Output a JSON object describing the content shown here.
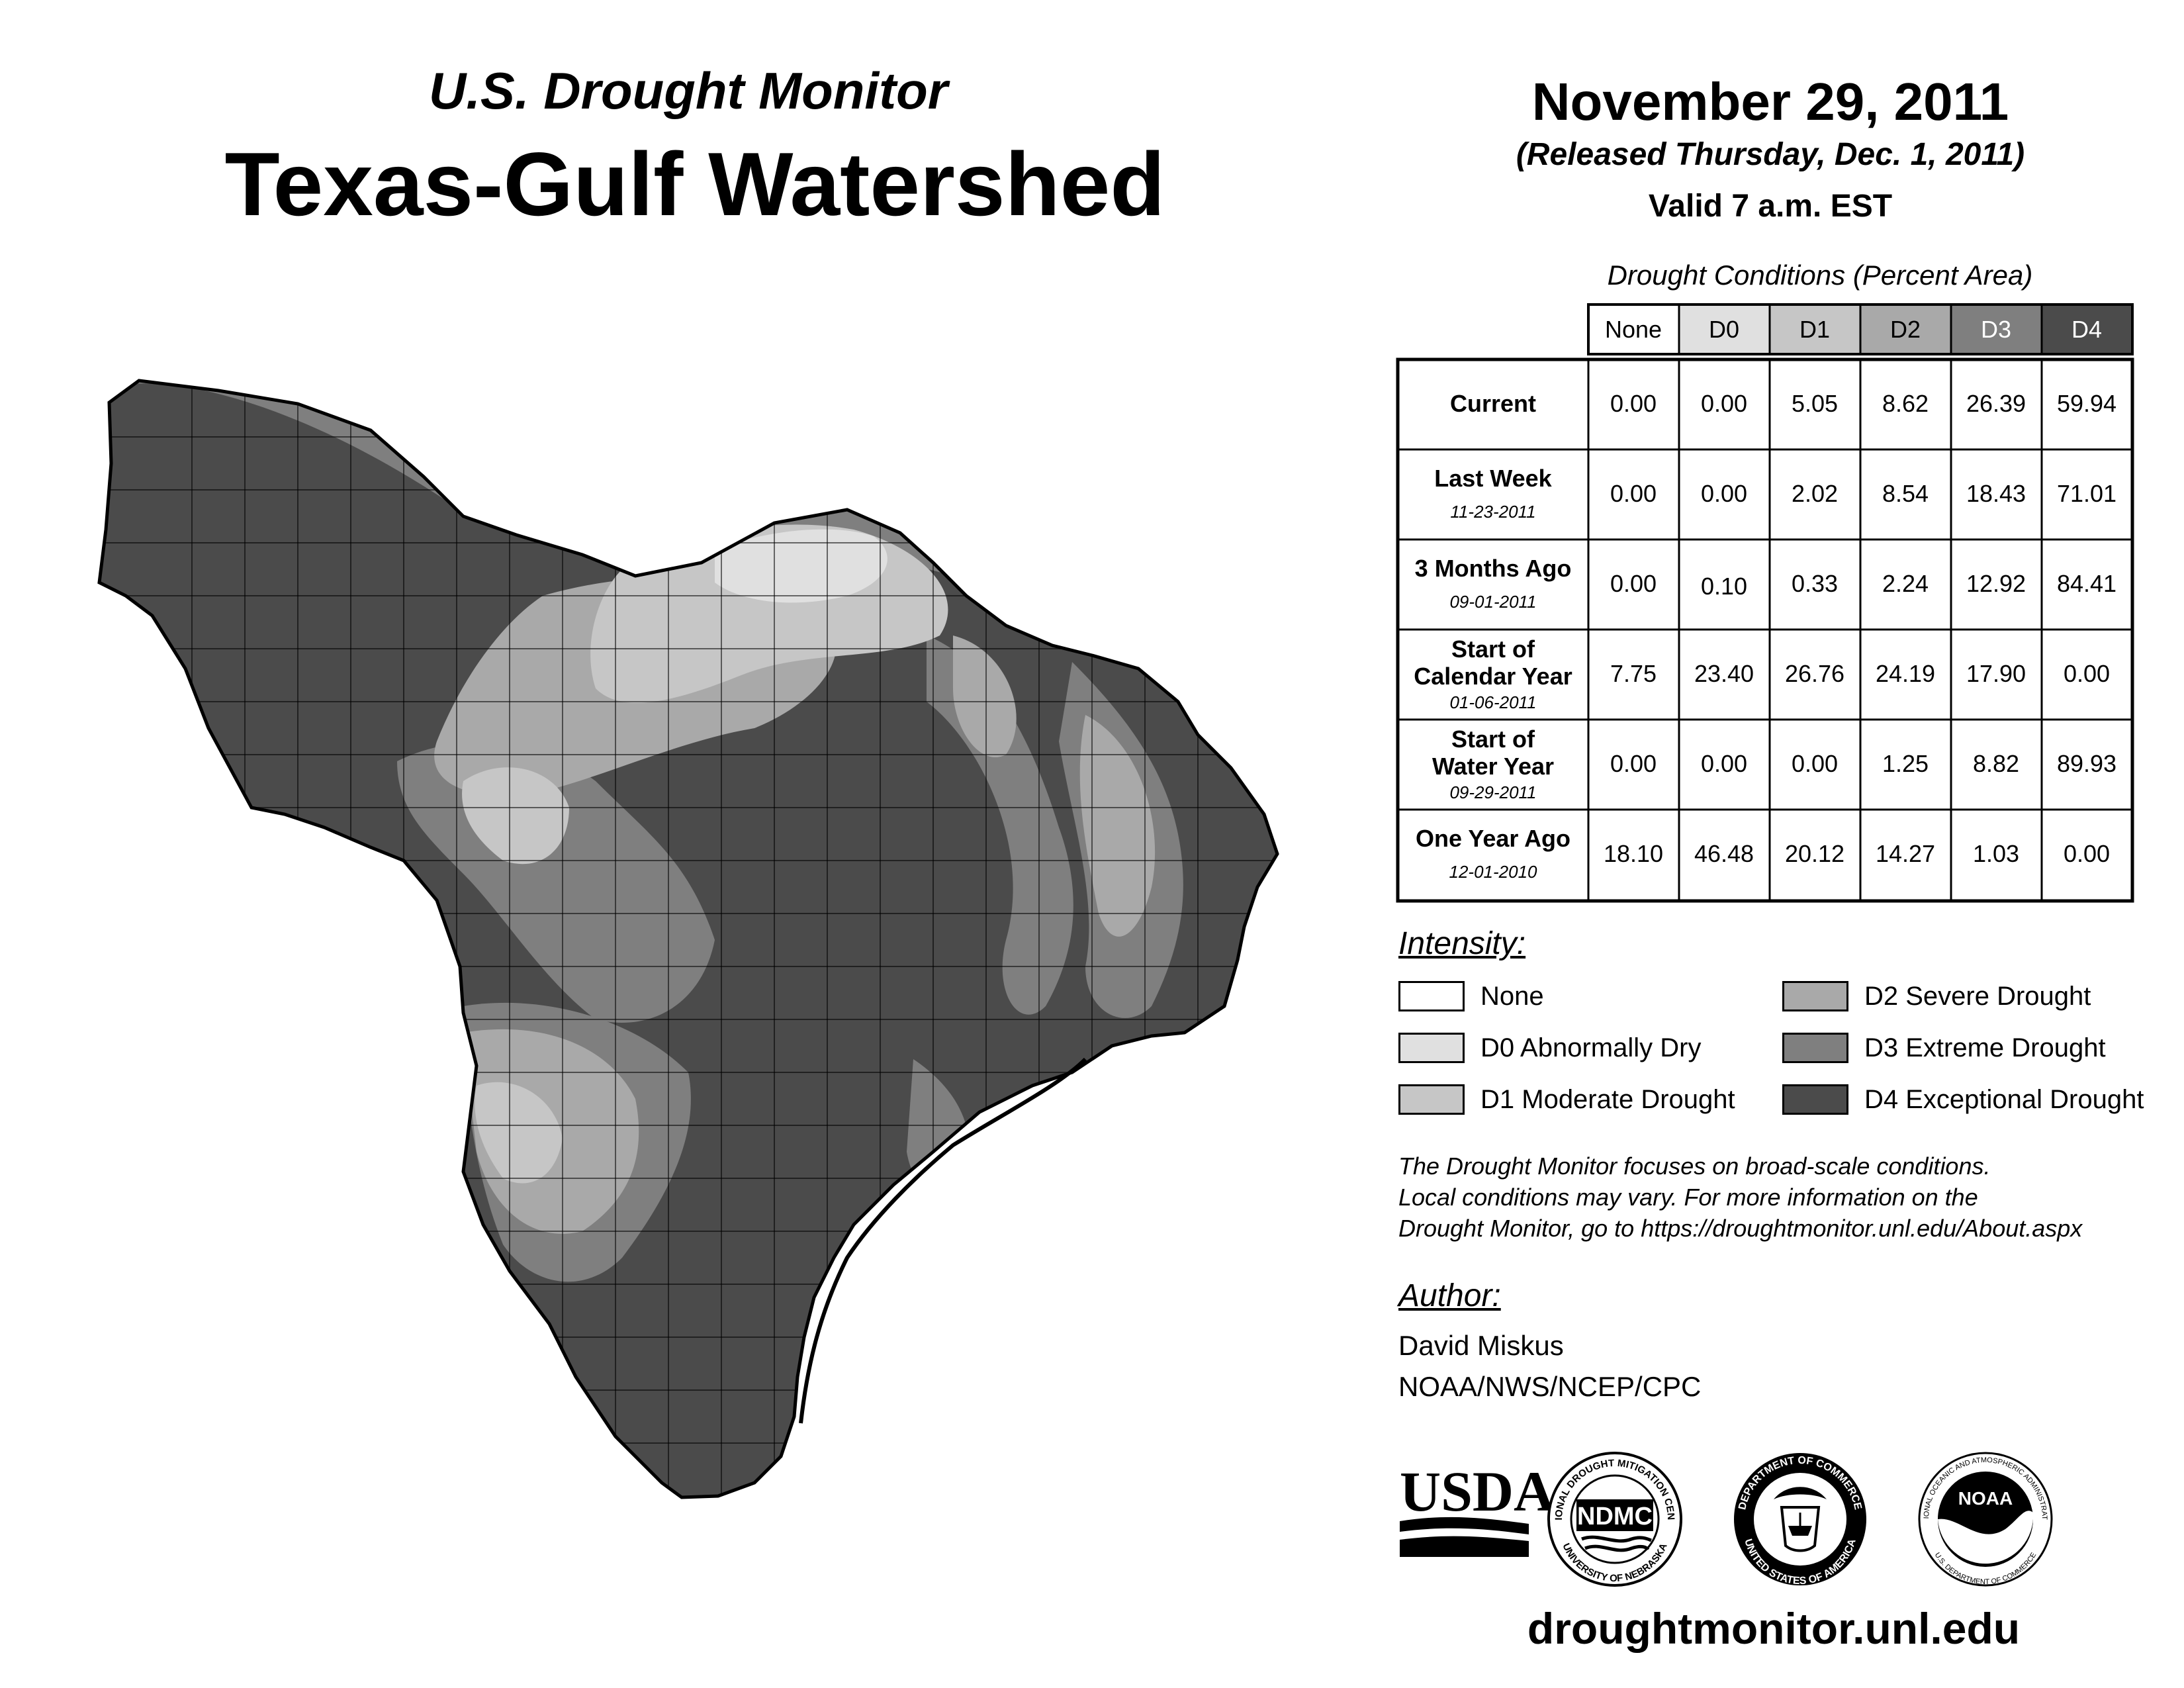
{
  "header": {
    "subtitle": "U.S. Drought Monitor",
    "title": "Texas-Gulf Watershed",
    "date": "November 29, 2011",
    "released": "(Released Thursday, Dec. 1, 2011)",
    "valid": "Valid 7 a.m. EST"
  },
  "table": {
    "caption": "Drought Conditions (Percent Area)",
    "columns": [
      "None",
      "D0",
      "D1",
      "D2",
      "D3",
      "D4"
    ],
    "rows": [
      {
        "label": "Current",
        "label2": "",
        "date": "",
        "values": [
          "0.00",
          "0.00",
          "5.05",
          "8.62",
          "26.39",
          "59.94"
        ]
      },
      {
        "label": "Last Week",
        "label2": "",
        "date": "11-23-2011",
        "values": [
          "0.00",
          "0.00",
          "2.02",
          "8.54",
          "18.43",
          "71.01"
        ]
      },
      {
        "label": "3 Months Ago",
        "label2": "",
        "date": "09-01-2011",
        "values": [
          "0.00",
          "0.10",
          "0.33",
          "2.24",
          "12.92",
          "84.41"
        ]
      },
      {
        "label": "Start of",
        "label2": "Calendar Year",
        "date": "01-06-2011",
        "values": [
          "7.75",
          "23.40",
          "26.76",
          "24.19",
          "17.90",
          "0.00"
        ]
      },
      {
        "label": "Start of",
        "label2": "Water Year",
        "date": "09-29-2011",
        "values": [
          "0.00",
          "0.00",
          "0.00",
          "1.25",
          "8.82",
          "89.93"
        ]
      },
      {
        "label": "One Year Ago",
        "label2": "",
        "date": "12-01-2010",
        "values": [
          "18.10",
          "46.48",
          "20.12",
          "14.27",
          "1.03",
          "0.00"
        ]
      }
    ]
  },
  "legend": {
    "title": "Intensity:",
    "items": [
      {
        "label": "None",
        "color": "#ffffff"
      },
      {
        "label": "D0 Abnormally Dry",
        "color": "#e0e0e0"
      },
      {
        "label": "D1 Moderate Drought",
        "color": "#c6c6c6"
      },
      {
        "label": "D2 Severe Drought",
        "color": "#a9a9a9"
      },
      {
        "label": "D3 Extreme Drought",
        "color": "#7f7f7f"
      },
      {
        "label": "D4 Exceptional Drought",
        "color": "#4b4b4b"
      }
    ]
  },
  "note": {
    "line1": "The Drought Monitor focuses on broad-scale conditions.",
    "line2": "Local conditions may vary. For more information on the",
    "line3": "Drought Monitor, go to https://droughtmonitor.unl.edu/About.aspx"
  },
  "author": {
    "title": "Author:",
    "name": "David Miskus",
    "org": "NOAA/NWS/NCEP/CPC"
  },
  "logos": {
    "usda": "USDA",
    "ndmc": "NDMC",
    "ndmc_ring_top": "NATIONAL DROUGHT MITIGATION CENTER",
    "ndmc_ring_bottom": "UNIVERSITY OF NEBRASKA",
    "doc_ring_top": "DEPARTMENT OF COMMERCE",
    "doc_ring_bottom": "UNITED STATES OF AMERICA",
    "noaa": "NOAA",
    "noaa_ring_top": "NATIONAL OCEANIC AND ATMOSPHERIC ADMINISTRATION",
    "noaa_ring_bottom": "U.S. DEPARTMENT OF COMMERCE"
  },
  "footer": {
    "url": "droughtmonitor.unl.edu"
  },
  "map": {
    "region": "Texas-Gulf Watershed",
    "background_color": "#4b4b4b"
  }
}
